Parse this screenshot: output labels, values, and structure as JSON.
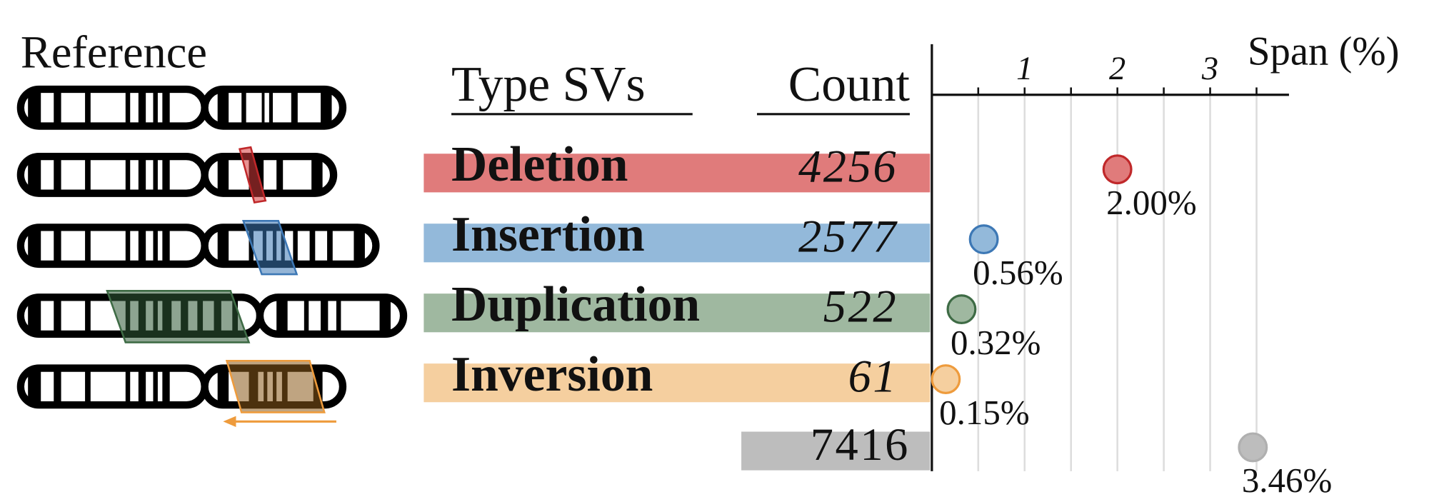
{
  "reference_label": "Reference",
  "table": {
    "headers": [
      "Type SVs",
      "Count"
    ]
  },
  "chart_data": {
    "type": "dot",
    "x_label": "Span (%)",
    "categories": [
      "Deletion",
      "Insertion",
      "Duplication",
      "Inversion",
      null
    ],
    "counts": [
      4256,
      2577,
      522,
      61,
      7416
    ],
    "values": [
      2.0,
      0.56,
      0.32,
      0.15,
      3.46
    ],
    "value_labels": [
      "2.00%",
      "0.56%",
      "0.32%",
      "0.15%",
      "3.46%"
    ],
    "colors": [
      "#e07b7b",
      "#93b9da",
      "#9fb8a0",
      "#f5cf9f",
      "#bdbdbd"
    ],
    "edge_colors": [
      "#c0282a",
      "#3d78b5",
      "#3e6b45",
      "#ee9b3c",
      "#b0b0b0"
    ],
    "xlim": [
      0,
      3.85
    ],
    "xticks": [
      1,
      2,
      3
    ],
    "minor_xticks": [
      0.5,
      1.5,
      2.5,
      3.5
    ],
    "grid": true
  }
}
